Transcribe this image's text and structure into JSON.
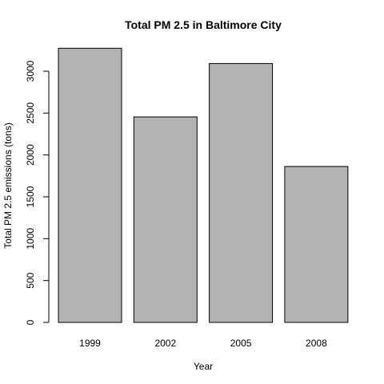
{
  "chart_data": {
    "type": "bar",
    "title": "Total PM 2.5 in Baltimore City",
    "xlabel": "Year",
    "ylabel": "Total PM 2.5 emissions (tons)",
    "categories": [
      "1999",
      "2002",
      "2005",
      "2008"
    ],
    "values": [
      3274.18,
      2453.92,
      3091.35,
      1862.28
    ],
    "ylim": [
      0,
      3300
    ],
    "yticks": [
      0,
      500,
      1000,
      1500,
      2000,
      2500,
      3000
    ],
    "ytick_labels": [
      "0",
      "500",
      "1000",
      "1500",
      "2000",
      "2500",
      "3000"
    ],
    "grid": false,
    "bar_color": "#b3b3b3",
    "bar_border_color": "#000000"
  }
}
